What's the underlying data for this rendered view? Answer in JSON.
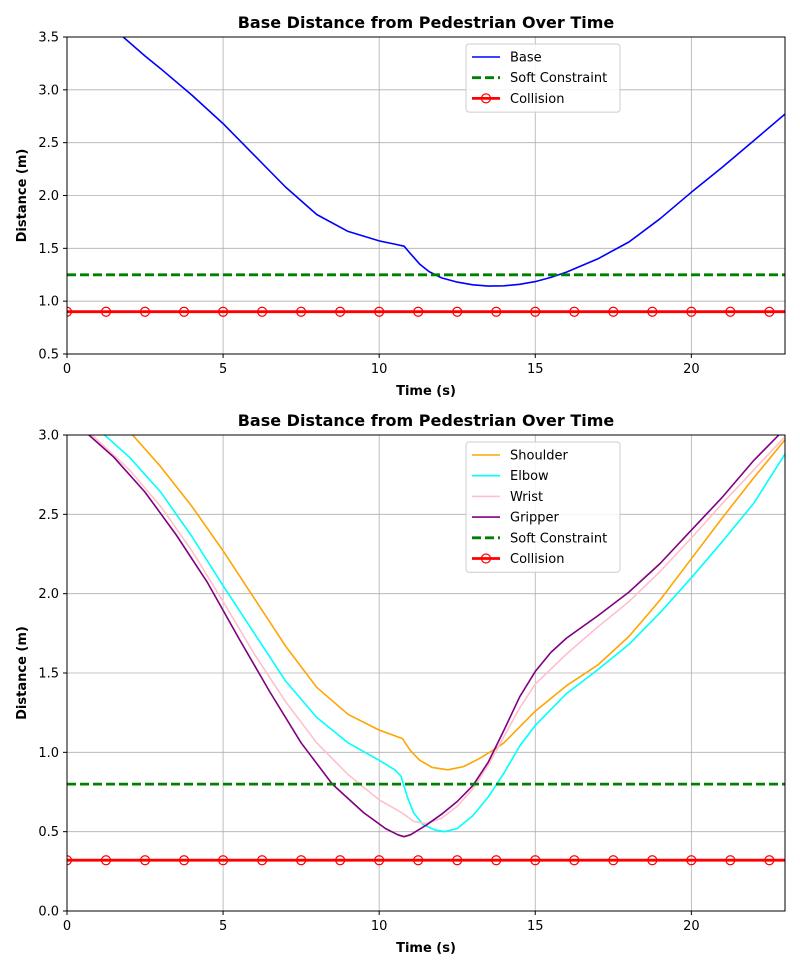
{
  "chart_data": [
    {
      "type": "line",
      "title": "Base Distance from Pedestrian Over Time",
      "xlabel": "Time (s)",
      "ylabel": "Distance (m)",
      "xlim": [
        0,
        23
      ],
      "ylim": [
        0.5,
        3.5
      ],
      "xticks": [
        0,
        5,
        10,
        15,
        20
      ],
      "yticks": [
        0.5,
        1.0,
        1.5,
        2.0,
        2.5,
        3.0,
        3.5
      ],
      "grid": true,
      "legend_position": "upper-center",
      "series": [
        {
          "name": "Base",
          "color": "#0000ff",
          "style": "solid",
          "x": [
            1.8,
            2.5,
            3.0,
            4.0,
            5.0,
            6.0,
            7.0,
            8.0,
            9.0,
            10.0,
            10.5,
            10.8,
            11.0,
            11.3,
            11.6,
            12.0,
            12.5,
            13.0,
            13.5,
            14.0,
            14.5,
            15.0,
            15.5,
            16.0,
            17.0,
            18.0,
            19.0,
            20.0,
            21.0,
            22.0,
            23.0
          ],
          "y": [
            3.5,
            3.32,
            3.2,
            2.95,
            2.68,
            2.38,
            2.08,
            1.82,
            1.66,
            1.57,
            1.54,
            1.52,
            1.45,
            1.35,
            1.28,
            1.22,
            1.18,
            1.155,
            1.143,
            1.145,
            1.16,
            1.185,
            1.225,
            1.275,
            1.4,
            1.56,
            1.78,
            2.03,
            2.27,
            2.52,
            2.77
          ]
        },
        {
          "name": "Soft Constraint",
          "color": "#008000",
          "style": "dashed",
          "x": [
            0,
            23
          ],
          "y": [
            1.25,
            1.25
          ]
        },
        {
          "name": "Collision",
          "color": "#ff0000",
          "style": "solid-with-markers",
          "marker": "open-circle",
          "x": [
            0,
            1.25,
            2.5,
            3.75,
            5.0,
            6.25,
            7.5,
            8.75,
            10.0,
            11.25,
            12.5,
            13.75,
            15.0,
            16.25,
            17.5,
            18.75,
            20.0,
            21.25,
            22.5,
            23
          ],
          "y": [
            0.9,
            0.9,
            0.9,
            0.9,
            0.9,
            0.9,
            0.9,
            0.9,
            0.9,
            0.9,
            0.9,
            0.9,
            0.9,
            0.9,
            0.9,
            0.9,
            0.9,
            0.9,
            0.9,
            0.9
          ],
          "marker_x": [
            0,
            1.25,
            2.5,
            3.75,
            5.0,
            6.25,
            7.5,
            8.75,
            10.0,
            11.25,
            12.5,
            13.75,
            15.0,
            16.25,
            17.5,
            18.75,
            20.0,
            21.25,
            22.5
          ]
        }
      ]
    },
    {
      "type": "line",
      "title": "Base Distance from Pedestrian Over Time",
      "xlabel": "Time (s)",
      "ylabel": "Distance (m)",
      "xlim": [
        0,
        23
      ],
      "ylim": [
        0.0,
        3.0
      ],
      "xticks": [
        0,
        5,
        10,
        15,
        20
      ],
      "yticks": [
        0.0,
        0.5,
        1.0,
        1.5,
        2.0,
        2.5,
        3.0
      ],
      "grid": true,
      "legend_position": "upper-center",
      "series": [
        {
          "name": "Shoulder",
          "color": "#ffa500",
          "style": "solid",
          "x": [
            2.1,
            3.0,
            4.0,
            5.0,
            6.0,
            7.0,
            8.0,
            9.0,
            10.0,
            10.5,
            10.75,
            11.0,
            11.3,
            11.7,
            12.2,
            12.7,
            13.2,
            13.7,
            14.0,
            15.0,
            16.0,
            17.0,
            18.0,
            19.0,
            20.0,
            21.0,
            22.0,
            23.0
          ],
          "y": [
            3.0,
            2.8,
            2.55,
            2.27,
            1.97,
            1.67,
            1.41,
            1.24,
            1.14,
            1.105,
            1.085,
            1.01,
            0.95,
            0.905,
            0.89,
            0.91,
            0.96,
            1.02,
            1.06,
            1.26,
            1.42,
            1.55,
            1.73,
            1.96,
            2.22,
            2.48,
            2.73,
            2.97
          ]
        },
        {
          "name": "Elbow",
          "color": "#00ffff",
          "style": "solid",
          "x": [
            1.2,
            2.0,
            3.0,
            4.0,
            5.0,
            6.0,
            7.0,
            8.0,
            9.0,
            10.0,
            10.5,
            10.7,
            10.9,
            11.1,
            11.4,
            11.8,
            12.1,
            12.5,
            13.0,
            13.5,
            14.0,
            14.5,
            15.0,
            16.0,
            17.0,
            18.0,
            19.0,
            20.0,
            21.0,
            22.0,
            23.0
          ],
          "y": [
            3.0,
            2.86,
            2.64,
            2.36,
            2.05,
            1.75,
            1.45,
            1.22,
            1.06,
            0.95,
            0.89,
            0.85,
            0.72,
            0.62,
            0.545,
            0.51,
            0.5,
            0.52,
            0.6,
            0.72,
            0.87,
            1.04,
            1.17,
            1.37,
            1.52,
            1.68,
            1.88,
            2.1,
            2.33,
            2.57,
            2.88
          ]
        },
        {
          "name": "Wrist",
          "color": "#ffc0cb",
          "style": "solid",
          "x": [
            0.8,
            2.0,
            3.0,
            4.0,
            5.0,
            6.0,
            7.0,
            8.0,
            9.0,
            10.0,
            10.5,
            10.8,
            11.1,
            11.5,
            12.0,
            12.5,
            13.0,
            13.5,
            14.0,
            14.5,
            15.0,
            16.0,
            17.0,
            18.0,
            19.0,
            20.0,
            21.0,
            22.0,
            23.0
          ],
          "y": [
            3.0,
            2.78,
            2.55,
            2.27,
            1.95,
            1.62,
            1.32,
            1.06,
            0.86,
            0.7,
            0.645,
            0.61,
            0.565,
            0.55,
            0.585,
            0.66,
            0.77,
            0.92,
            1.1,
            1.28,
            1.43,
            1.62,
            1.79,
            1.95,
            2.14,
            2.35,
            2.57,
            2.78,
            2.99
          ]
        },
        {
          "name": "Gripper",
          "color": "#800080",
          "style": "solid",
          "x": [
            0.7,
            1.5,
            2.5,
            3.5,
            4.5,
            5.5,
            6.5,
            7.5,
            8.5,
            9.5,
            10.2,
            10.6,
            10.8,
            11.0,
            11.5,
            12.0,
            12.5,
            13.0,
            13.5,
            14.0,
            14.5,
            15.0,
            15.5,
            16.0,
            17.0,
            18.0,
            19.0,
            20.0,
            21.0,
            22.0,
            22.8
          ],
          "y": [
            3.0,
            2.86,
            2.64,
            2.37,
            2.07,
            1.72,
            1.38,
            1.06,
            0.8,
            0.62,
            0.52,
            0.48,
            0.468,
            0.48,
            0.54,
            0.61,
            0.69,
            0.79,
            0.94,
            1.14,
            1.35,
            1.51,
            1.63,
            1.72,
            1.86,
            2.01,
            2.19,
            2.4,
            2.61,
            2.84,
            3.0
          ]
        },
        {
          "name": "Soft Constraint",
          "color": "#008000",
          "style": "dashed",
          "x": [
            0,
            23
          ],
          "y": [
            0.8,
            0.8
          ]
        },
        {
          "name": "Collision",
          "color": "#ff0000",
          "style": "solid-with-markers",
          "marker": "open-circle",
          "x": [
            0,
            23
          ],
          "y": [
            0.32,
            0.32
          ],
          "marker_x": [
            0,
            1.25,
            2.5,
            3.75,
            5.0,
            6.25,
            7.5,
            8.75,
            10.0,
            11.25,
            12.5,
            13.75,
            15.0,
            16.25,
            17.5,
            18.75,
            20.0,
            21.25,
            22.5
          ]
        }
      ]
    }
  ]
}
